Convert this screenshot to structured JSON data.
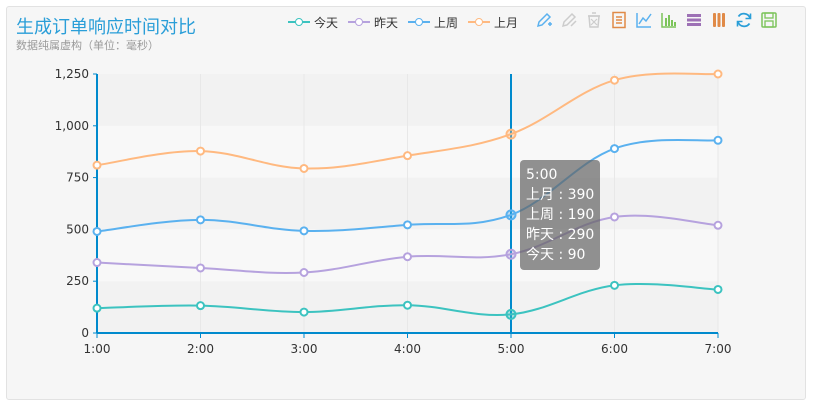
{
  "header": {
    "title": "生成订单响应时间对比",
    "subtitle": "数据纯属虚构（单位：毫秒）"
  },
  "legend": [
    {
      "label": "今天",
      "color": "#3cc3c0"
    },
    {
      "label": "昨天",
      "color": "#b6a2de"
    },
    {
      "label": "上周",
      "color": "#5ab1ef"
    },
    {
      "label": "上月",
      "color": "#ffb980"
    }
  ],
  "toolbox": [
    {
      "icon": "mark-pen-icon",
      "color": "#5ab1ef"
    },
    {
      "icon": "mark-undo-icon",
      "color": "#cccccc"
    },
    {
      "icon": "mark-clear-icon",
      "color": "#cccccc"
    },
    {
      "icon": "data-view-icon",
      "color": "#e08a47"
    },
    {
      "icon": "line-chart-icon",
      "color": "#5ab1ef"
    },
    {
      "icon": "bar-chart-icon",
      "color": "#7cc45a"
    },
    {
      "icon": "stack-icon",
      "color": "#9d71b5"
    },
    {
      "icon": "tiled-icon",
      "color": "#e08a47"
    },
    {
      "icon": "restore-icon",
      "color": "#2a9ed8"
    },
    {
      "icon": "save-image-icon",
      "color": "#7cc45a"
    }
  ],
  "tooltip": {
    "title": "5:00",
    "lines": [
      "上月 : 390",
      "上周 : 190",
      "昨天 : 290",
      "今天 : 90"
    ]
  },
  "chart_data": {
    "type": "line",
    "x": [
      "1:00",
      "2:00",
      "3:00",
      "4:00",
      "5:00",
      "6:00",
      "7:00"
    ],
    "yticks": [
      "0",
      "250",
      "500",
      "750",
      "1,000",
      "1,250"
    ],
    "ylim": [
      0,
      1250
    ],
    "stacked": true,
    "smooth": true,
    "highlight_x": "5:00",
    "series": [
      {
        "name": "今天",
        "color": "#3cc3c0",
        "values": [
          120,
          132,
          101,
          134,
          90,
          230,
          210
        ]
      },
      {
        "name": "昨天",
        "color": "#b6a2de",
        "values": [
          220,
          182,
          191,
          234,
          290,
          330,
          310
        ]
      },
      {
        "name": "上周",
        "color": "#5ab1ef",
        "values": [
          150,
          232,
          201,
          154,
          190,
          330,
          410
        ]
      },
      {
        "name": "上月",
        "color": "#ffb980",
        "values": [
          320,
          332,
          301,
          334,
          390,
          330,
          320
        ]
      }
    ]
  }
}
